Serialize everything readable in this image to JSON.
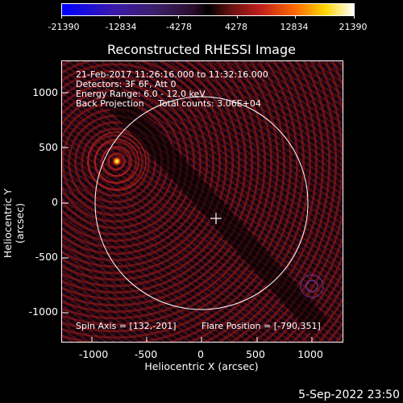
{
  "colorbar": {
    "ticks": [
      "-21390",
      "-12834",
      "-4278",
      "4278",
      "12834",
      "21390"
    ]
  },
  "title": "Reconstructed RHESSI Image",
  "info": {
    "time_range": "21-Feb-2017 11:26:16.000 to 11:32:16.000",
    "detectors": "Detectors: 3F 6F, Att 0",
    "energy_range": "Energy Range: 6.0 - 12.0 keV",
    "method": "Back Projection     Total counts: 3.06E+04",
    "spin_axis": "Spin Axis = [132,-201]",
    "flare_position": "Flare Position = [-790,351]"
  },
  "axes": {
    "x_label": "Heliocentric X (arcsec)",
    "y_label": "Heliocentric Y (arcsec)",
    "x_ticks": [
      "-1000",
      "-500",
      "0",
      "500",
      "1000"
    ],
    "y_ticks": [
      "1000",
      "500",
      "0",
      "-500",
      "-1000"
    ]
  },
  "footer_timestamp": "5-Sep-2022 23:50",
  "colors": {
    "background": "#000000",
    "foreground": "#ffffff",
    "limb": "#ffffff"
  }
}
